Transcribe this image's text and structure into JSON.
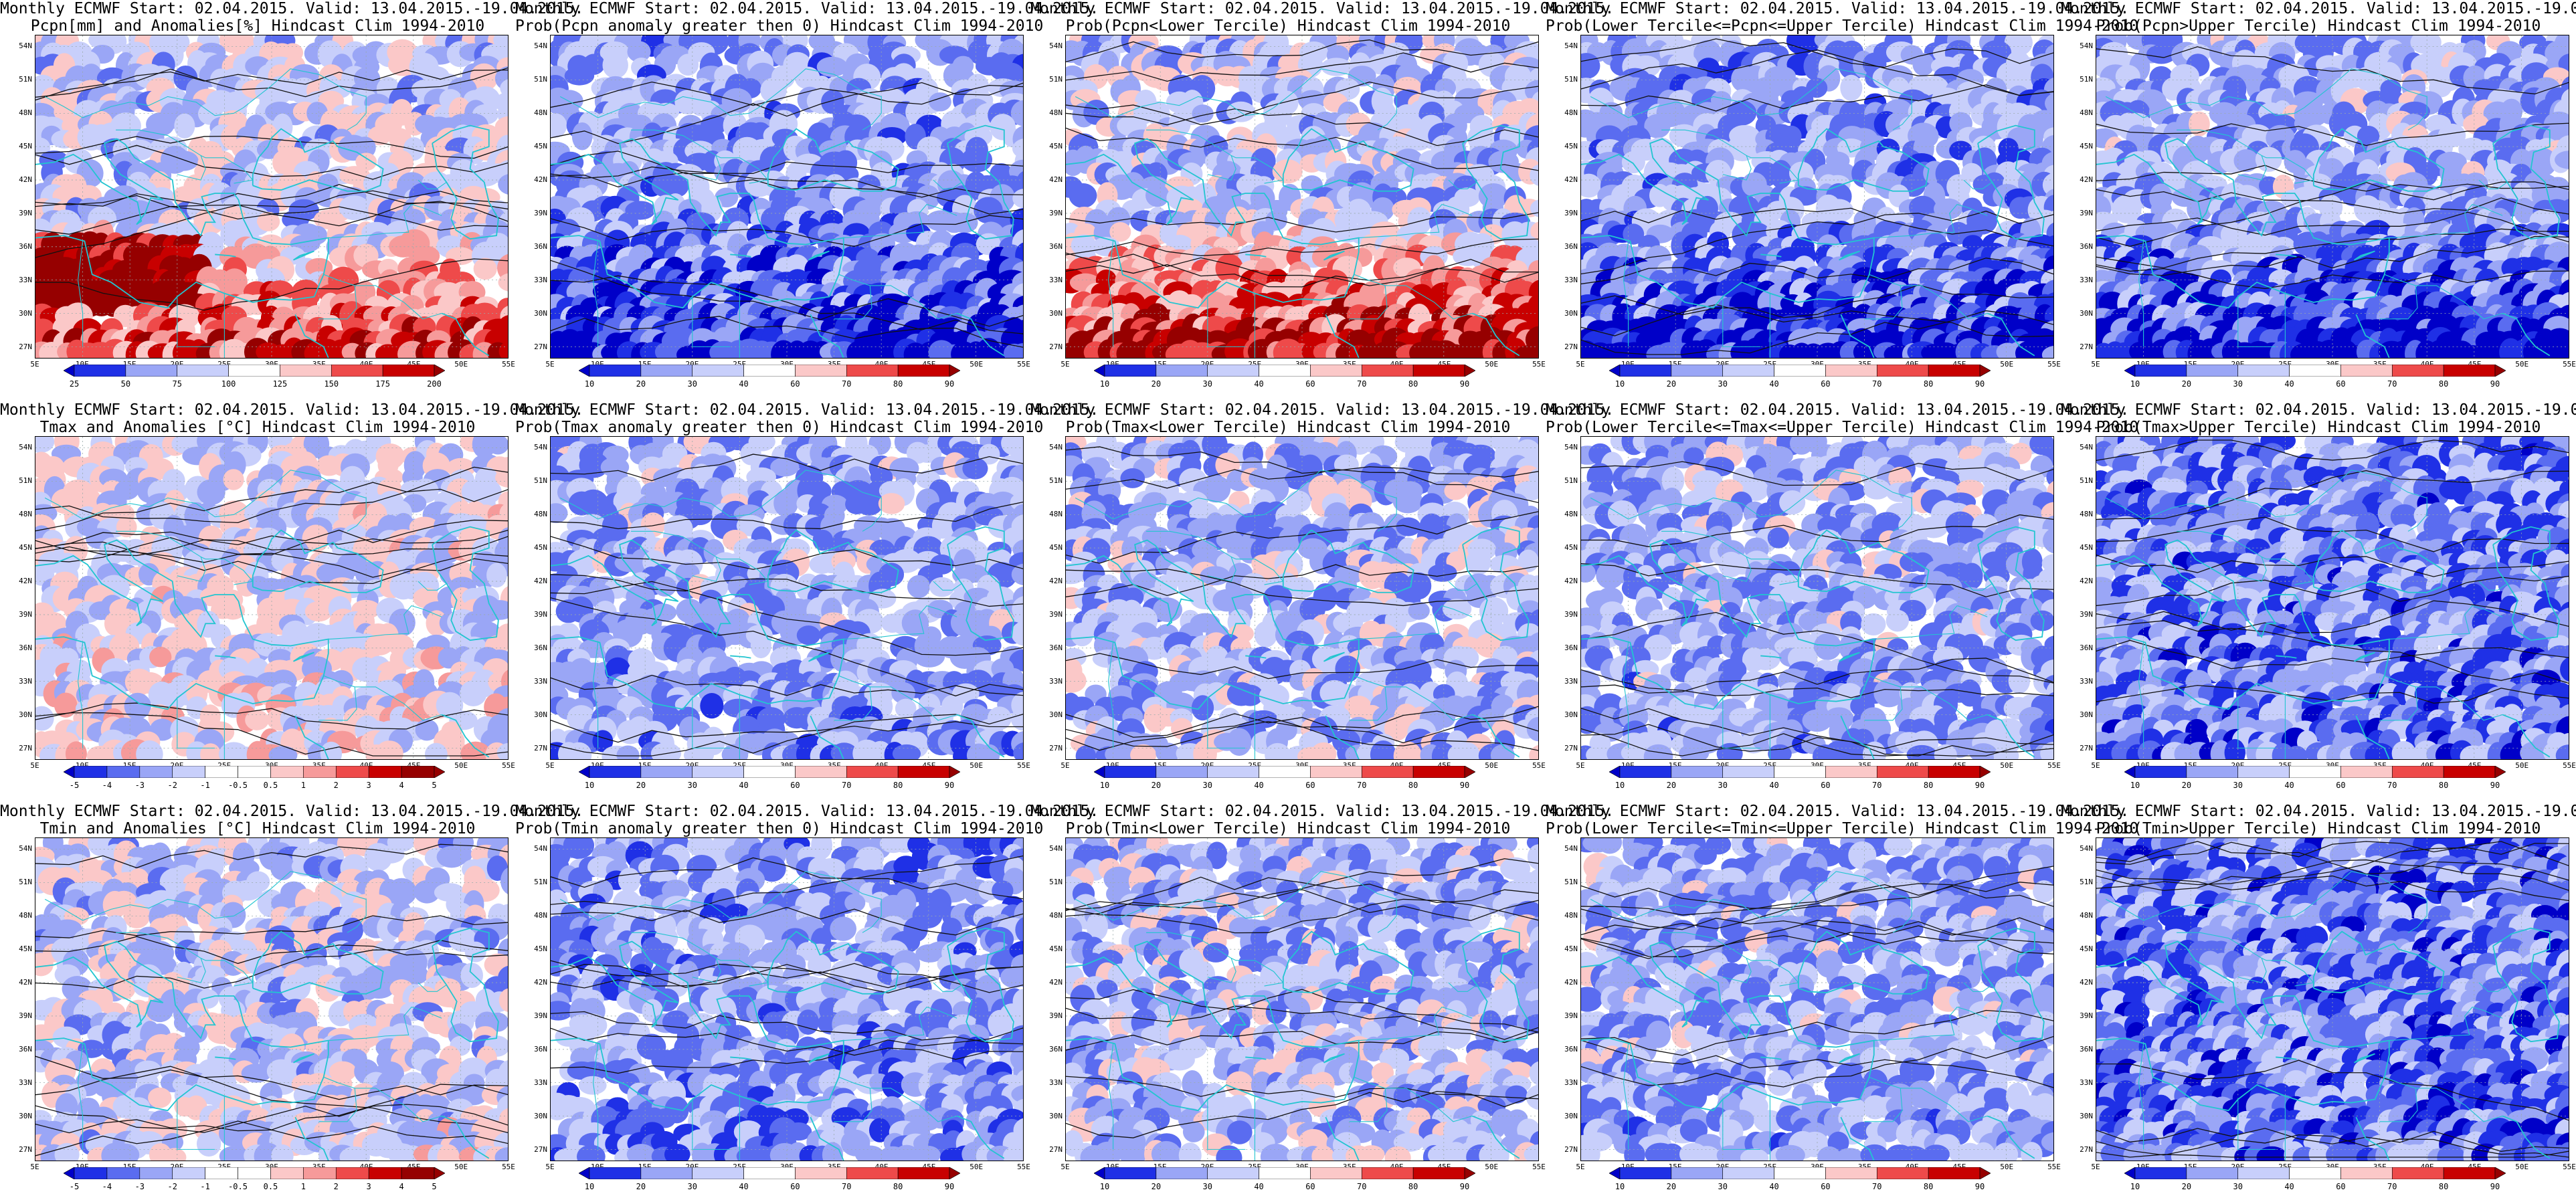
{
  "header": {
    "line1": "Monthly ECMWF Start: 02.04.2015. Valid: 13.04.2015.-19.04.2015."
  },
  "lat_ticks": [
    "54N",
    "51N",
    "48N",
    "45N",
    "42N",
    "39N",
    "36N",
    "33N",
    "30N",
    "27N"
  ],
  "lon_ticks": [
    "5E",
    "10E",
    "15E",
    "20E",
    "25E",
    "30E",
    "35E",
    "40E",
    "45E",
    "50E",
    "55E"
  ],
  "colors": {
    "coast": "#22c5d0",
    "contour": "#111111",
    "dark_blue": "#0000c8",
    "white": "#ffffff",
    "dark_red": "#b40000"
  },
  "rows": [
    {
      "variable": "precipitation",
      "panels": [
        {
          "id": "pcpn-anom",
          "title2": "Pcpn[mm] and Anomalies[%] Hindcast Clim 1994-2010",
          "type": "anom",
          "colorbar": [
            "25",
            "50",
            "75",
            "100",
            "125",
            "150",
            "175",
            "200"
          ],
          "bias": -0.15,
          "south": 0.85,
          "seed": 11
        },
        {
          "id": "pcpn-prob0",
          "title2": "Prob(Pcpn anomaly greater then 0) Hindcast Clim 1994-2010",
          "type": "prob",
          "colorbar": [
            "10",
            "20",
            "30",
            "40",
            "60",
            "70",
            "80",
            "90"
          ],
          "bias": -0.35,
          "south": -0.75,
          "seed": 12
        },
        {
          "id": "pcpn-lower",
          "title2": "Prob(Pcpn<Lower Tercile) Hindcast Clim 1994-2010",
          "type": "prob",
          "colorbar": [
            "10",
            "20",
            "30",
            "40",
            "60",
            "70",
            "80",
            "90"
          ],
          "bias": -0.2,
          "south": 1.2,
          "seed": 13
        },
        {
          "id": "pcpn-mid",
          "title2": "Prob(Lower Tercile<=Pcpn<=Upper Tercile) Hindcast Clim 1994-2010",
          "type": "prob",
          "colorbar": [
            "10",
            "20",
            "30",
            "40",
            "60",
            "70",
            "80",
            "90"
          ],
          "bias": -0.35,
          "south": -0.7,
          "seed": 14
        },
        {
          "id": "pcpn-upper",
          "title2": "Prob(Pcpn>Upper Tercile) Hindcast Clim 1994-2010",
          "type": "prob",
          "colorbar": [
            "10",
            "20",
            "30",
            "40",
            "60",
            "70",
            "80",
            "90"
          ],
          "bias": -0.3,
          "south": -0.8,
          "seed": 15
        }
      ]
    },
    {
      "variable": "tmax",
      "panels": [
        {
          "id": "tmax-anom",
          "title2": "Tmax and Anomalies [°C] Hindcast Clim 1994-2010",
          "type": "anom",
          "colorbar": [
            "-5",
            "-4",
            "-3",
            "-2",
            "-1",
            "-0.5",
            "0.5",
            "1",
            "2",
            "3",
            "4",
            "5"
          ],
          "bias": -0.1,
          "south": 0.1,
          "seed": 21
        },
        {
          "id": "tmax-prob0",
          "title2": "Prob(Tmax anomaly greater then 0) Hindcast Clim 1994-2010",
          "type": "prob",
          "colorbar": [
            "10",
            "20",
            "30",
            "40",
            "60",
            "70",
            "80",
            "90"
          ],
          "bias": -0.3,
          "south": -0.1,
          "seed": 22
        },
        {
          "id": "tmax-lower",
          "title2": "Prob(Tmax<Lower Tercile) Hindcast Clim 1994-2010",
          "type": "prob",
          "colorbar": [
            "10",
            "20",
            "30",
            "40",
            "60",
            "70",
            "80",
            "90"
          ],
          "bias": -0.25,
          "south": 0.0,
          "seed": 23
        },
        {
          "id": "tmax-mid",
          "title2": "Prob(Lower Tercile<=Tmax<=Upper Tercile) Hindcast Clim 1994-2010",
          "type": "prob",
          "colorbar": [
            "10",
            "20",
            "30",
            "40",
            "60",
            "70",
            "80",
            "90"
          ],
          "bias": -0.3,
          "south": -0.05,
          "seed": 24
        },
        {
          "id": "tmax-upper",
          "title2": "Prob(Tmax>Upper Tercile) Hindcast Clim 1994-2010",
          "type": "prob",
          "colorbar": [
            "10",
            "20",
            "30",
            "40",
            "60",
            "70",
            "80",
            "90"
          ],
          "bias": -0.55,
          "south": -0.1,
          "seed": 25
        }
      ]
    },
    {
      "variable": "tmin",
      "panels": [
        {
          "id": "tmin-anom",
          "title2": "Tmin and Anomalies [°C] Hindcast Clim 1994-2010",
          "type": "anom",
          "colorbar": [
            "-5",
            "-4",
            "-3",
            "-2",
            "-1",
            "-0.5",
            "0.5",
            "1",
            "2",
            "3",
            "4",
            "5"
          ],
          "bias": -0.15,
          "south": 0.05,
          "seed": 31
        },
        {
          "id": "tmin-prob0",
          "title2": "Prob(Tmin anomaly greater then 0) Hindcast Clim 1994-2010",
          "type": "prob",
          "colorbar": [
            "10",
            "20",
            "30",
            "40",
            "60",
            "70",
            "80",
            "90"
          ],
          "bias": -0.35,
          "south": -0.1,
          "seed": 32
        },
        {
          "id": "tmin-lower",
          "title2": "Prob(Tmin<Lower Tercile) Hindcast Clim 1994-2010",
          "type": "prob",
          "colorbar": [
            "10",
            "20",
            "30",
            "40",
            "60",
            "70",
            "80",
            "90"
          ],
          "bias": -0.25,
          "south": 0.05,
          "seed": 33
        },
        {
          "id": "tmin-mid",
          "title2": "Prob(Lower Tercile<=Tmin<=Upper Tercile) Hindcast Clim 1994-2010",
          "type": "prob",
          "colorbar": [
            "10",
            "20",
            "30",
            "40",
            "60",
            "70",
            "80",
            "90"
          ],
          "bias": -0.3,
          "south": -0.05,
          "seed": 34
        },
        {
          "id": "tmin-upper",
          "title2": "Prob(Tmin>Upper Tercile) Hindcast Clim 1994-2010",
          "type": "prob",
          "colorbar": [
            "10",
            "20",
            "30",
            "40",
            "60",
            "70",
            "80",
            "90"
          ],
          "bias": -0.6,
          "south": -0.1,
          "seed": 35
        }
      ]
    }
  ]
}
